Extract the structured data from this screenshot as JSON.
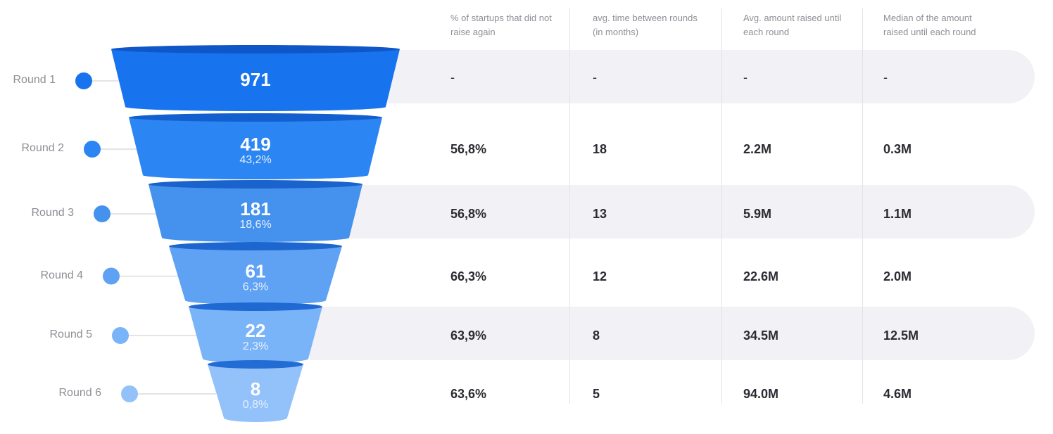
{
  "chart_data": {
    "type": "table",
    "rounds": [
      {
        "label": "Round 1",
        "count": "971",
        "share": "",
        "not_raise_again": "-",
        "avg_time": "-",
        "avg_amount": "-",
        "median_amount": "-",
        "count_value": 971,
        "color": "#1873ee",
        "rim": "#0f56c9"
      },
      {
        "label": "Round 2",
        "count": "419",
        "share": "43,2%",
        "not_raise_again": "56,8%",
        "avg_time": "18",
        "avg_amount": "2.2M",
        "median_amount": "0.3M",
        "count_value": 419,
        "color": "#2b85f2",
        "rim": "#135fcf"
      },
      {
        "label": "Round 3",
        "count": "181",
        "share": "18,6%",
        "not_raise_again": "56,8%",
        "avg_time": "13",
        "avg_amount": "5.9M",
        "median_amount": "1.1M",
        "count_value": 181,
        "color": "#4592ee",
        "rim": "#1a62cc"
      },
      {
        "label": "Round 4",
        "count": "61",
        "share": "6,3%",
        "not_raise_again": "66,3%",
        "avg_time": "12",
        "avg_amount": "22.6M",
        "median_amount": "2.0M",
        "count_value": 61,
        "color": "#5fa2f4",
        "rim": "#1d66cf"
      },
      {
        "label": "Round 5",
        "count": "22",
        "share": "2,3%",
        "not_raise_again": "63,9%",
        "avg_time": "8",
        "avg_amount": "34.5M",
        "median_amount": "12.5M",
        "count_value": 22,
        "color": "#7ab4f8",
        "rim": "#2069d2"
      },
      {
        "label": "Round 6",
        "count": "8",
        "share": "0,8%",
        "not_raise_again": "63,6%",
        "avg_time": "5",
        "avg_amount": "94.0M",
        "median_amount": "4.6M",
        "count_value": 8,
        "color": "#93c2fb",
        "rim": "#236cd4"
      }
    ]
  },
  "columns": [
    {
      "key": "not_raise_again",
      "header": "% of startups that did not raise again"
    },
    {
      "key": "avg_time",
      "header": "avg. time between rounds (in months)"
    },
    {
      "key": "avg_amount",
      "header": "Avg. amount raised until each round"
    },
    {
      "key": "median_amount",
      "header": "Median of the amount raised until each round"
    }
  ],
  "colors": {
    "row_band": "#f2f2f6",
    "label": "#8e8e96",
    "value_text": "#2b2b33",
    "connector": "#c9c9cf"
  }
}
